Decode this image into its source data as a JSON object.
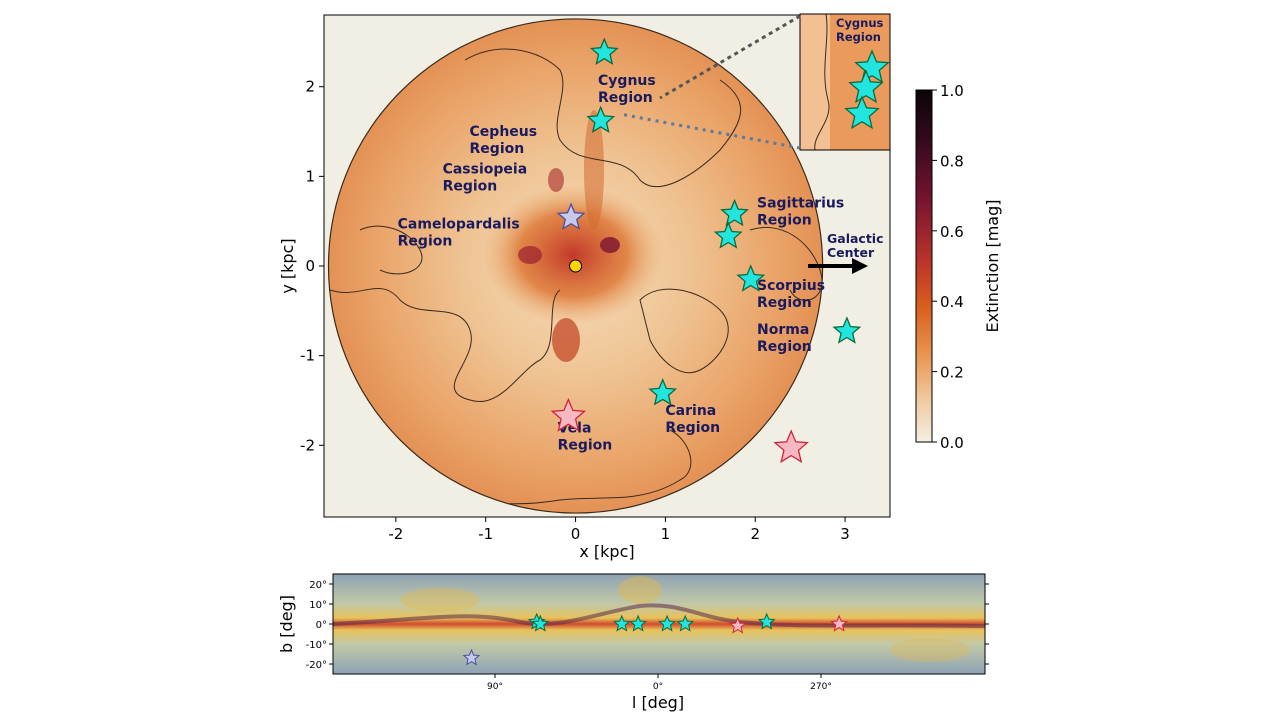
{
  "main_chart": {
    "type": "scatter",
    "xlabel": "x [kpc]",
    "ylabel": "y [kpc]",
    "xlim": [
      -2.8,
      3.5
    ],
    "ylim": [
      -2.8,
      2.8
    ],
    "x_ticks": [
      -2,
      -1,
      0,
      1,
      2,
      3
    ],
    "y_ticks": [
      -2,
      -1,
      0,
      1,
      2
    ],
    "disk_radius_kpc": 2.75,
    "colorbar": {
      "label": "Extinction [mag]",
      "range": [
        0.0,
        1.0
      ],
      "ticks": [
        "0.0",
        "0.2",
        "0.4",
        "0.6",
        "0.8",
        "1.0"
      ],
      "colors": [
        "#f4efe2",
        "#f1c9a0",
        "#e89450",
        "#d9601e",
        "#b8322a",
        "#7a1530",
        "#3a0a1f",
        "#0a0508"
      ]
    },
    "sun": {
      "x": 0.0,
      "y": 0.0,
      "color": "#ffd400"
    },
    "background_color": "#f1efe4",
    "star_colors": {
      "cyan": "#22e5e0",
      "pink": "#f7b8c2",
      "lavender": "#c6c9ea",
      "outline_cyan": "#0b6b3a",
      "outline_pink": "#d1243a",
      "outline_lav": "#4a4f9a"
    },
    "stars": [
      {
        "x": 0.32,
        "y": 2.38,
        "kind": "cyan"
      },
      {
        "x": 0.28,
        "y": 1.62,
        "kind": "cyan"
      },
      {
        "x": -0.05,
        "y": 0.54,
        "kind": "lavender"
      },
      {
        "x": 1.77,
        "y": 0.58,
        "kind": "cyan"
      },
      {
        "x": 1.7,
        "y": 0.33,
        "kind": "cyan"
      },
      {
        "x": 1.95,
        "y": -0.15,
        "kind": "cyan"
      },
      {
        "x": 3.02,
        "y": -0.73,
        "kind": "cyan"
      },
      {
        "x": 0.97,
        "y": -1.42,
        "kind": "cyan"
      },
      {
        "x": -0.08,
        "y": -1.68,
        "kind": "pink"
      },
      {
        "x": 2.4,
        "y": -2.03,
        "kind": "pink"
      }
    ],
    "region_labels": [
      {
        "x": 0.25,
        "y": 2.02,
        "lines": [
          "Cygnus",
          "Region"
        ]
      },
      {
        "x": -1.18,
        "y": 1.45,
        "lines": [
          "Cepheus",
          "Region"
        ]
      },
      {
        "x": -1.48,
        "y": 1.03,
        "lines": [
          "Cassiopeia",
          "Region"
        ]
      },
      {
        "x": -1.98,
        "y": 0.42,
        "lines": [
          "Camelopardalis",
          "Region"
        ]
      },
      {
        "x": 2.02,
        "y": 0.65,
        "lines": [
          "Sagittarius",
          "Region"
        ]
      },
      {
        "x": 2.02,
        "y": -0.27,
        "lines": [
          "Scorpius",
          "Region"
        ]
      },
      {
        "x": 2.02,
        "y": -0.76,
        "lines": [
          "Norma",
          "Region"
        ]
      },
      {
        "x": 1.0,
        "y": -1.66,
        "lines": [
          "Carina",
          "Region"
        ]
      },
      {
        "x": -0.2,
        "y": -1.86,
        "lines": [
          "Vela",
          "Region"
        ]
      }
    ],
    "galactic_center_label": [
      "Galactic",
      "Center"
    ],
    "inset": {
      "lines": [
        "Cygnus",
        "Region"
      ]
    }
  },
  "sky_chart": {
    "type": "scatter",
    "xlabel": "l [deg]",
    "ylabel": "b [deg]",
    "y_ticks": [
      "20°",
      "10°",
      "0°",
      "-10°",
      "-20°"
    ],
    "x_ticks": [
      "90°",
      "0°",
      "270°"
    ],
    "stars": [
      {
        "l": 67,
        "b": 1,
        "kind": "cyan"
      },
      {
        "l": 65,
        "b": 0,
        "kind": "cyan"
      },
      {
        "l": 20,
        "b": 0,
        "kind": "cyan"
      },
      {
        "l": 11,
        "b": 0,
        "kind": "cyan"
      },
      {
        "l": -5,
        "b": 0,
        "kind": "cyan"
      },
      {
        "l": -15,
        "b": 0,
        "kind": "cyan"
      },
      {
        "l": -44,
        "b": -1,
        "kind": "pink"
      },
      {
        "l": -60,
        "b": 1,
        "kind": "cyan"
      },
      {
        "l": -100,
        "b": 0,
        "kind": "pink"
      },
      {
        "l": 103,
        "b": -17,
        "kind": "lavender"
      }
    ]
  }
}
